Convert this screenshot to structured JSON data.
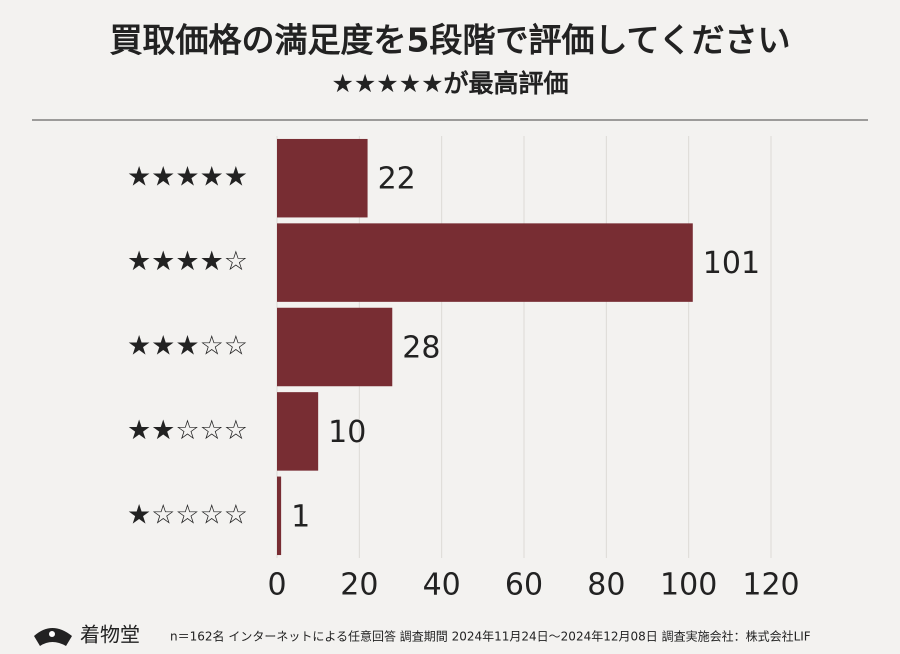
{
  "chart_data": {
    "type": "barh",
    "title": "買取価格の満足度を5段階で評価してください",
    "subtitle": "★★★★★が最高評価",
    "categories": [
      "★★★★★",
      "★★★★☆",
      "★★★☆☆",
      "★★☆☆☆",
      "★☆☆☆☆"
    ],
    "values": [
      22,
      101,
      28,
      10,
      1
    ],
    "color": "#782d33",
    "xlim": [
      0,
      120
    ],
    "xticks": [
      0,
      20,
      40,
      60,
      80,
      100,
      120
    ],
    "grid": true
  },
  "footer": {
    "brand": "着物堂",
    "note": "n＝162名 インターネットによる任意回答 調査期間 2024年11月24日～2024年12月08日 調査実施会社：株式会社LIF"
  }
}
